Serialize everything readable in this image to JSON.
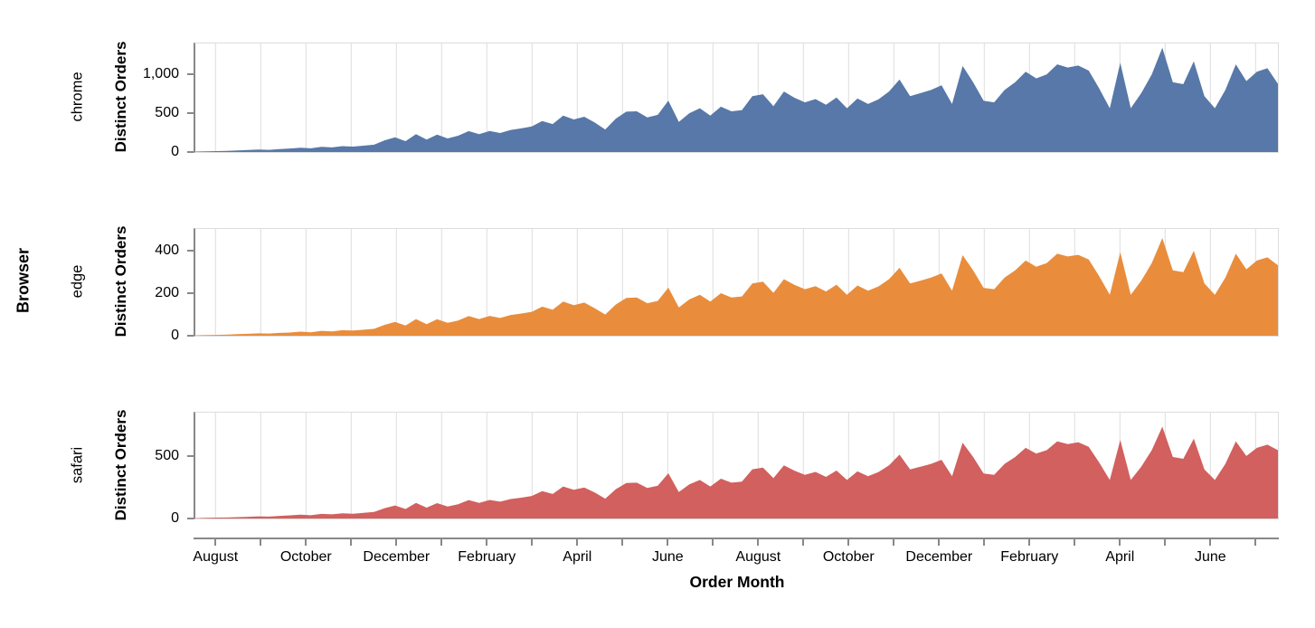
{
  "chart_data": {
    "type": "area",
    "facet_title": "Browser",
    "y_axis_title": "Distinct Orders",
    "x_axis_title": "Order Month",
    "grid": true,
    "legend": "none",
    "style": {
      "grid_color": "#dddddd",
      "axis_color": "#888888",
      "border_color": "#dddddd",
      "text_color": "#000000"
    },
    "x": {
      "unit": "week",
      "span_months": 24,
      "month_labels": [
        "August",
        "",
        "October",
        "",
        "December",
        "",
        "February",
        "",
        "April",
        "",
        "June",
        "",
        "August",
        "",
        "October",
        "",
        "December",
        "",
        "February",
        "",
        "April",
        "",
        "June",
        ""
      ]
    },
    "facets": [
      {
        "label": "chrome",
        "color": "#5778a8",
        "ylim": [
          0,
          1400
        ],
        "yticks": [
          0,
          500,
          1000
        ],
        "ytick_labels": [
          "0",
          "500",
          "1,000"
        ],
        "values": [
          6,
          9,
          12,
          15,
          20,
          26,
          32,
          28,
          38,
          45,
          55,
          48,
          68,
          60,
          76,
          70,
          82,
          95,
          150,
          190,
          140,
          230,
          160,
          225,
          175,
          210,
          270,
          230,
          272,
          245,
          285,
          305,
          330,
          400,
          360,
          470,
          420,
          455,
          380,
          290,
          430,
          520,
          525,
          447,
          480,
          663,
          388,
          500,
          565,
          470,
          584,
          525,
          540,
          721,
          745,
          590,
          780,
          700,
          640,
          682,
          610,
          702,
          565,
          690,
          620,
          680,
          780,
          935,
          720,
          760,
          800,
          860,
          620,
          1110,
          900,
          660,
          640,
          800,
          900,
          1035,
          950,
          1000,
          1130,
          1090,
          1115,
          1050,
          820,
          565,
          1150,
          565,
          760,
          1000,
          1345,
          900,
          875,
          1170,
          720,
          565,
          800,
          1130,
          915,
          1035,
          1080,
          880
        ]
      },
      {
        "label": "edge",
        "color": "#e98d3c",
        "ylim": [
          0,
          500
        ],
        "yticks": [
          0,
          200,
          400
        ],
        "ytick_labels": [
          "0",
          "200",
          "400"
        ],
        "values": [
          2,
          3,
          4,
          5,
          7,
          9,
          11,
          10,
          13,
          15,
          19,
          16,
          23,
          20,
          26,
          24,
          28,
          32,
          51,
          65,
          48,
          78,
          54,
          77,
          60,
          71,
          92,
          78,
          93,
          83,
          97,
          104,
          112,
          136,
          122,
          160,
          143,
          155,
          129,
          99,
          146,
          177,
          179,
          152,
          163,
          225,
          132,
          170,
          192,
          160,
          199,
          179,
          184,
          245,
          253,
          201,
          265,
          238,
          218,
          232,
          207,
          239,
          192,
          235,
          211,
          231,
          265,
          318,
          245,
          258,
          272,
          292,
          211,
          377,
          306,
          224,
          218,
          272,
          306,
          352,
          323,
          340,
          384,
          371,
          379,
          357,
          279,
          192,
          391,
          192,
          258,
          340,
          457,
          306,
          298,
          398,
          245,
          192,
          272,
          384,
          311,
          352,
          367,
          330
        ]
      },
      {
        "label": "safari",
        "color": "#d2605e",
        "ylim": [
          0,
          845
        ],
        "yticks": [
          0,
          500
        ],
        "ytick_labels": [
          "0",
          "500"
        ],
        "values": [
          3,
          5,
          7,
          8,
          11,
          14,
          17,
          15,
          21,
          25,
          30,
          26,
          37,
          33,
          41,
          38,
          45,
          52,
          82,
          104,
          76,
          125,
          87,
          123,
          95,
          114,
          147,
          125,
          148,
          134,
          155,
          166,
          180,
          218,
          196,
          256,
          229,
          248,
          207,
          158,
          234,
          283,
          286,
          244,
          262,
          361,
          211,
          273,
          308,
          256,
          318,
          286,
          294,
          393,
          406,
          322,
          425,
          382,
          349,
          372,
          332,
          383,
          308,
          376,
          338,
          371,
          425,
          510,
          392,
          414,
          436,
          469,
          338,
          605,
          491,
          360,
          349,
          436,
          491,
          564,
          518,
          545,
          616,
          594,
          608,
          572,
          447,
          308,
          627,
          308,
          414,
          545,
          733,
          491,
          477,
          638,
          392,
          308,
          436,
          616,
          499,
          564,
          589,
          545
        ]
      }
    ]
  }
}
